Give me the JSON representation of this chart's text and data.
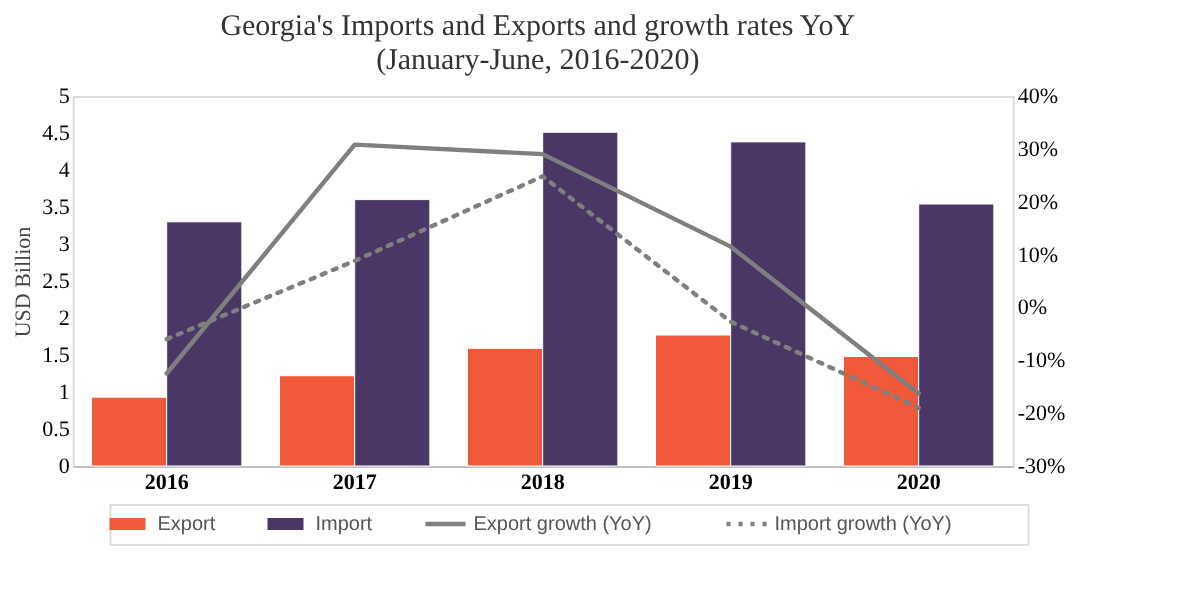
{
  "chart_data": {
    "type": "bar",
    "title": "Georgia's Imports and Exports and growth rates YoY\n(January-June, 2016-2020)",
    "categories": [
      "2016",
      "2017",
      "2018",
      "2019",
      "2020"
    ],
    "ylabel": "USD Billion",
    "series": [
      {
        "name": "Export",
        "type": "bar",
        "color": "#f05a3a",
        "values": [
          0.93,
          1.22,
          1.59,
          1.77,
          1.48
        ]
      },
      {
        "name": "Import",
        "type": "bar",
        "color": "#4a3766",
        "values": [
          3.3,
          3.6,
          4.51,
          4.38,
          3.54
        ]
      },
      {
        "name": "Export growth (YoY)",
        "type": "line",
        "axis": "y2",
        "color": "#7f7f7f",
        "line_style": "solid",
        "values": [
          -12.5,
          30.8,
          29,
          11.5,
          -16.3
        ]
      },
      {
        "name": "Import growth (YoY)",
        "type": "line",
        "axis": "y2",
        "color": "#7f7f7f",
        "line_style": "dotted",
        "values": [
          -6,
          8.8,
          24.8,
          -2.7,
          -19
        ]
      }
    ],
    "ylim": [
      0,
      5
    ],
    "yticks": [
      0,
      0.5,
      1,
      1.5,
      2,
      2.5,
      3,
      3.5,
      4,
      4.5,
      5
    ],
    "y2lim": [
      -30,
      40
    ],
    "y2ticks": [
      {
        "value": -30,
        "label": "-30%"
      },
      {
        "value": -20,
        "label": "-20%"
      },
      {
        "value": -10,
        "label": "-10%"
      },
      {
        "value": 0,
        "label": "0%"
      },
      {
        "value": 10,
        "label": "10%"
      },
      {
        "value": 20,
        "label": "20%"
      },
      {
        "value": 30,
        "label": "30%"
      },
      {
        "value": 40,
        "label": "40%"
      }
    ],
    "legend": "bottom",
    "grid": false
  }
}
